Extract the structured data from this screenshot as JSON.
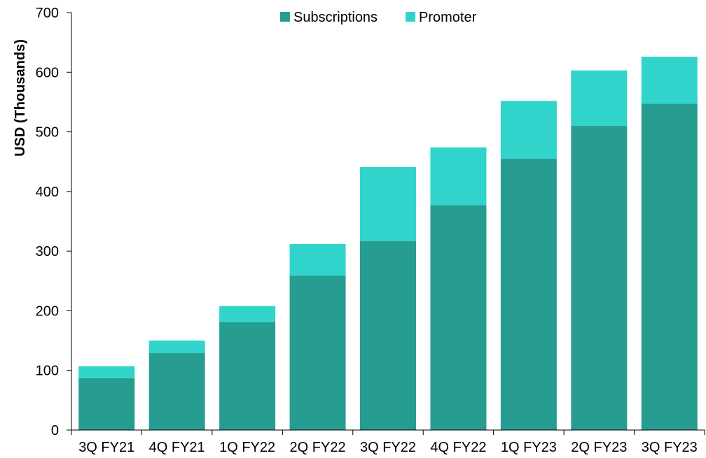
{
  "chart_data": {
    "type": "bar",
    "stacked": true,
    "title": "",
    "xlabel": "",
    "ylabel": "USD (Thousands)",
    "ylim": [
      0,
      700
    ],
    "yticks": [
      0,
      100,
      200,
      300,
      400,
      500,
      600,
      700
    ],
    "grid": false,
    "legend_position": "top-center",
    "categories": [
      "3Q FY21",
      "4Q FY21",
      "1Q FY22",
      "2Q FY22",
      "3Q FY22",
      "4Q FY22",
      "1Q FY23",
      "2Q FY23",
      "3Q FY23"
    ],
    "series": [
      {
        "name": "Subscriptions",
        "color": "#279d92",
        "values": [
          87,
          129,
          181,
          259,
          317,
          377,
          455,
          510,
          547
        ]
      },
      {
        "name": "Promoter",
        "color": "#31d4cb",
        "values": [
          20,
          21,
          27,
          53,
          124,
          97,
          97,
          93,
          79
        ]
      }
    ]
  }
}
